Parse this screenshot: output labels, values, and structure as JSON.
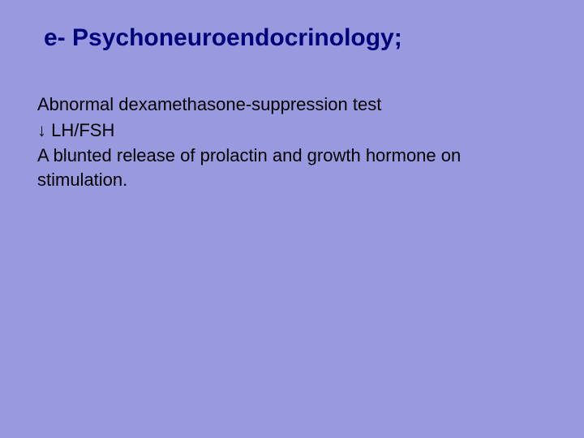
{
  "colors": {
    "background": "#9999e0",
    "title": "#00007a",
    "body": "#000000"
  },
  "typography": {
    "title_fontsize": 30,
    "body_fontsize": 22,
    "font_family": "Arial"
  },
  "title": "e- Psychoneuroendocrinology;",
  "lines": {
    "l1": "Abnormal dexamethasone-suppression test",
    "l2": "↓ LH/FSH",
    "l3": "A blunted release of prolactin and growth hormone on stimulation."
  }
}
